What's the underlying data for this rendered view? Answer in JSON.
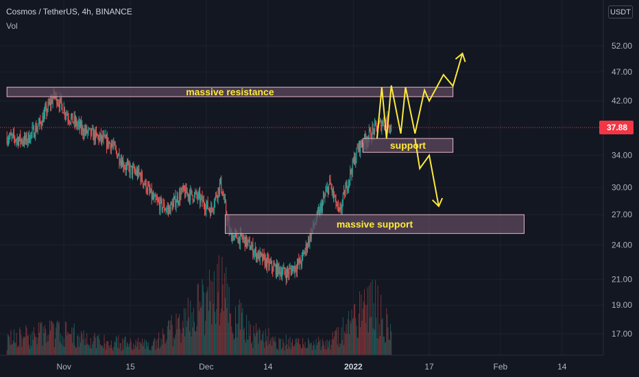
{
  "header": {
    "title": "Cosmos / TetherUS, 4h, BINANCE",
    "volume_label": "Vol",
    "currency_button": "USDT"
  },
  "chart_data": {
    "type": "candlestick",
    "symbol": "Cosmos / TetherUS",
    "interval": "4h",
    "exchange": "BINANCE",
    "x_tick_labels": [
      "Nov",
      "15",
      "Dec",
      "14",
      "2022",
      "17",
      "Feb",
      "14"
    ],
    "y_tick_labels": [
      "52.00",
      "47.00",
      "42.00",
      "37.88",
      "34.00",
      "30.00",
      "27.00",
      "24.00",
      "21.00",
      "19.00",
      "17.00"
    ],
    "y_scale": "log",
    "last_price": "37.88",
    "price_path": [
      [
        "Oct 20",
        36.5
      ],
      [
        "Oct 24",
        36.0
      ],
      [
        "Oct 27",
        38.5
      ],
      [
        "Oct 30",
        43.0
      ],
      [
        "Nov 2",
        39.5
      ],
      [
        "Nov 5",
        37.5
      ],
      [
        "Nov 8",
        36.5
      ],
      [
        "Nov 11",
        35.5
      ],
      [
        "Nov 14",
        32.5
      ],
      [
        "Nov 17",
        31.5
      ],
      [
        "Nov 20",
        28.5
      ],
      [
        "Nov 23",
        27.5
      ],
      [
        "Nov 26",
        29.5
      ],
      [
        "Nov 29",
        29.0
      ],
      [
        "Dec 2",
        27.5
      ],
      [
        "Dec 4",
        30.5
      ],
      [
        "Dec 6",
        25.0
      ],
      [
        "Dec 9",
        24.5
      ],
      [
        "Dec 12",
        23.0
      ],
      [
        "Dec 15",
        22.0
      ],
      [
        "Dec 18",
        21.5
      ],
      [
        "Dec 21",
        22.5
      ],
      [
        "Dec 23",
        25.0
      ],
      [
        "Dec 25",
        27.5
      ],
      [
        "Dec 27",
        30.5
      ],
      [
        "Dec 29",
        27.0
      ],
      [
        "Dec 31",
        31.0
      ],
      [
        "Jan 2",
        35.0
      ],
      [
        "Jan 4",
        36.5
      ],
      [
        "Jan 6",
        38.0
      ],
      [
        "Jan 8",
        39.0
      ],
      [
        "Jan 9",
        37.88
      ]
    ],
    "volume_profile": [
      [
        "Oct 20",
        0.14
      ],
      [
        "Oct 30",
        0.22
      ],
      [
        "Nov 10",
        0.12
      ],
      [
        "Nov 20",
        0.1
      ],
      [
        "Dec 4",
        0.6
      ],
      [
        "Dec 10",
        0.2
      ],
      [
        "Dec 20",
        0.1
      ],
      [
        "Dec 28",
        0.14
      ],
      [
        "Jan 5",
        0.5
      ],
      [
        "Jan 9",
        0.2
      ]
    ],
    "zones": [
      {
        "label": "massive resistance",
        "top": 44.3,
        "bottom": 42.7,
        "from": "Oct 20",
        "to": "Jan 22"
      },
      {
        "label": "support",
        "top": 36.3,
        "bottom": 34.4,
        "from": "Jan 3",
        "to": "Jan 22"
      },
      {
        "label": "massive support",
        "top": 27.0,
        "bottom": 25.1,
        "from": "Dec 5",
        "to": "Feb 6"
      }
    ],
    "projections": [
      {
        "direction": "up",
        "path": [
          [
            "Jan 6",
            36.3
          ],
          [
            "Jan 7",
            44.3
          ],
          [
            "Jan 8",
            36.3
          ],
          [
            "Jan 9",
            44.6
          ],
          [
            "Jan 11",
            37.0
          ],
          [
            "Jan 12",
            44.3
          ],
          [
            "Jan 14",
            37.0
          ],
          [
            "Jan 16",
            43.8
          ],
          [
            "Jan 17",
            42.0
          ],
          [
            "Jan 20",
            46.5
          ],
          [
            "Jan 22",
            44.5
          ],
          [
            "Jan 24",
            50.5
          ]
        ]
      },
      {
        "direction": "down",
        "path": [
          [
            "Jan 14",
            36.3
          ],
          [
            "Jan 15",
            32.3
          ],
          [
            "Jan 17",
            34.0
          ],
          [
            "Jan 19",
            27.9
          ]
        ]
      }
    ],
    "colors": {
      "up": "#26a69a",
      "down": "#ef5350",
      "zone_fill": "#5d4a5d",
      "zone_border": "#e8b8c8",
      "annotation": "#ffeb3b",
      "price_line": "#f23645"
    }
  }
}
